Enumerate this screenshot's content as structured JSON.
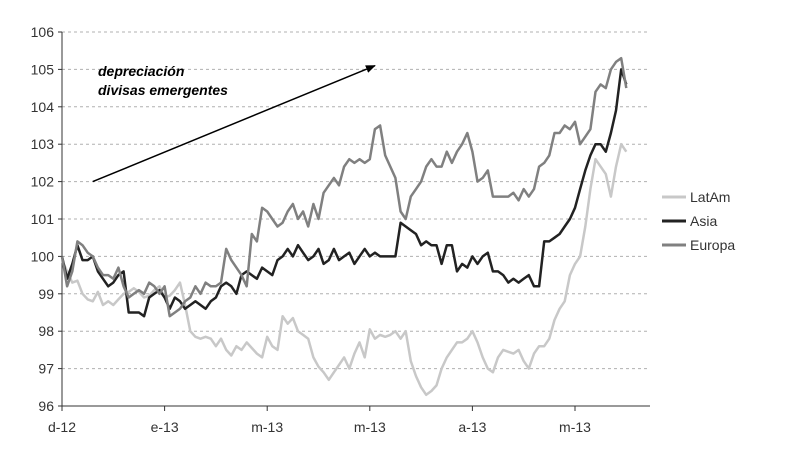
{
  "chart_data": {
    "type": "line",
    "title": "",
    "xlabel": "",
    "ylabel": "",
    "ylim": [
      96,
      106
    ],
    "yticks": [
      96,
      97,
      98,
      99,
      100,
      101,
      102,
      103,
      104,
      105,
      106
    ],
    "xticks": [
      "d-12",
      "e-13",
      "m-13",
      "m-13",
      "a-13",
      "m-13"
    ],
    "grid": "horizontal-dashed",
    "legend_position": "right",
    "annotation": {
      "lines": [
        "depreciación",
        "divisas emergentes"
      ],
      "arrow": {
        "from": [
          0.3,
          102.0
        ],
        "to": [
          3.05,
          105.1
        ]
      }
    },
    "series": [
      {
        "name": "LatAm",
        "color": "#c8c8c8",
        "x": [
          0,
          0.05,
          0.1,
          0.15,
          0.2,
          0.25,
          0.3,
          0.35,
          0.4,
          0.45,
          0.5,
          0.55,
          0.6,
          0.65,
          0.7,
          0.75,
          0.8,
          0.85,
          0.9,
          0.95,
          1,
          1.05,
          1.1,
          1.15,
          1.2,
          1.25,
          1.3,
          1.35,
          1.4,
          1.45,
          1.5,
          1.55,
          1.6,
          1.65,
          1.7,
          1.75,
          1.8,
          1.85,
          1.9,
          1.95,
          2,
          2.05,
          2.1,
          2.15,
          2.2,
          2.25,
          2.3,
          2.35,
          2.4,
          2.45,
          2.5,
          2.55,
          2.6,
          2.65,
          2.7,
          2.75,
          2.8,
          2.85,
          2.9,
          2.95,
          3,
          3.05,
          3.1,
          3.15,
          3.2,
          3.25,
          3.3,
          3.35,
          3.4,
          3.45,
          3.5,
          3.55,
          3.6,
          3.65,
          3.7,
          3.75,
          3.8,
          3.85,
          3.9,
          3.95,
          4,
          4.05,
          4.1,
          4.15,
          4.2,
          4.25,
          4.3,
          4.35,
          4.4,
          4.45,
          4.5,
          4.55,
          4.6,
          4.65,
          4.7,
          4.75,
          4.8,
          4.85,
          4.9,
          4.95,
          5,
          5.05,
          5.1,
          5.15,
          5.2,
          5.25,
          5.3,
          5.35,
          5.4,
          5.45,
          5.5
        ],
        "values": [
          99.9,
          99.6,
          99.3,
          99.35,
          99.0,
          98.85,
          98.8,
          99.05,
          98.7,
          98.8,
          98.7,
          98.85,
          99.0,
          99.05,
          99.15,
          99.05,
          98.9,
          98.95,
          99.1,
          99.2,
          98.9,
          98.95,
          99.1,
          99.3,
          98.7,
          98.0,
          97.85,
          97.8,
          97.85,
          97.8,
          97.6,
          97.8,
          97.5,
          97.35,
          97.6,
          97.5,
          97.7,
          97.55,
          97.4,
          97.3,
          97.85,
          97.6,
          97.5,
          98.4,
          98.2,
          98.35,
          98.0,
          97.9,
          97.8,
          97.3,
          97.05,
          96.9,
          96.7,
          96.9,
          97.1,
          97.3,
          97.0,
          97.4,
          97.7,
          97.3,
          98.05,
          97.8,
          97.9,
          97.85,
          97.9,
          98.0,
          97.8,
          98.0,
          97.2,
          96.8,
          96.5,
          96.3,
          96.4,
          96.55,
          97.0,
          97.3,
          97.5,
          97.7,
          97.7,
          97.8,
          98.0,
          97.7,
          97.3,
          97.0,
          96.9,
          97.3,
          97.5,
          97.45,
          97.4,
          97.5,
          97.2,
          97.0,
          97.4,
          97.6,
          97.6,
          97.8,
          98.3,
          98.6,
          98.8,
          99.5,
          99.8,
          100.0,
          100.8,
          101.8,
          102.6,
          102.4,
          102.2,
          101.6,
          102.4,
          103.0,
          102.8
        ]
      },
      {
        "name": "Asia",
        "color": "#222222",
        "x": [
          0,
          0.05,
          0.1,
          0.15,
          0.2,
          0.25,
          0.3,
          0.35,
          0.4,
          0.45,
          0.5,
          0.55,
          0.6,
          0.65,
          0.7,
          0.75,
          0.8,
          0.85,
          0.9,
          0.95,
          1,
          1.05,
          1.1,
          1.15,
          1.2,
          1.25,
          1.3,
          1.35,
          1.4,
          1.45,
          1.5,
          1.55,
          1.6,
          1.65,
          1.7,
          1.75,
          1.8,
          1.85,
          1.9,
          1.95,
          2,
          2.05,
          2.1,
          2.15,
          2.2,
          2.25,
          2.3,
          2.35,
          2.4,
          2.45,
          2.5,
          2.55,
          2.6,
          2.65,
          2.7,
          2.75,
          2.8,
          2.85,
          2.9,
          2.95,
          3,
          3.05,
          3.1,
          3.15,
          3.2,
          3.25,
          3.3,
          3.35,
          3.4,
          3.45,
          3.5,
          3.55,
          3.6,
          3.65,
          3.7,
          3.75,
          3.8,
          3.85,
          3.9,
          3.95,
          4,
          4.05,
          4.1,
          4.15,
          4.2,
          4.25,
          4.3,
          4.35,
          4.4,
          4.45,
          4.5,
          4.55,
          4.6,
          4.65,
          4.7,
          4.75,
          4.8,
          4.85,
          4.9,
          4.95,
          5,
          5.05,
          5.1,
          5.15,
          5.2,
          5.25,
          5.3,
          5.35,
          5.4,
          5.45,
          5.5
        ],
        "values": [
          100.0,
          99.4,
          99.8,
          100.3,
          99.9,
          99.9,
          100.0,
          99.6,
          99.4,
          99.2,
          99.3,
          99.5,
          99.6,
          98.5,
          98.5,
          98.5,
          98.4,
          98.9,
          99.0,
          99.1,
          98.9,
          98.6,
          98.9,
          98.8,
          98.6,
          98.7,
          98.8,
          98.7,
          98.6,
          98.8,
          98.9,
          99.2,
          99.3,
          99.2,
          99.0,
          99.5,
          99.6,
          99.5,
          99.4,
          99.7,
          99.6,
          99.5,
          99.9,
          100.0,
          100.2,
          100.0,
          100.3,
          100.1,
          99.9,
          100.0,
          100.2,
          99.8,
          99.9,
          100.2,
          99.9,
          100.0,
          100.1,
          99.8,
          100.0,
          100.2,
          100.0,
          100.1,
          100.0,
          100.0,
          100.0,
          100.0,
          100.9,
          100.8,
          100.7,
          100.6,
          100.3,
          100.4,
          100.3,
          100.3,
          99.8,
          100.3,
          100.3,
          99.6,
          99.8,
          99.7,
          100.0,
          99.8,
          100.0,
          100.1,
          99.6,
          99.6,
          99.5,
          99.3,
          99.4,
          99.3,
          99.4,
          99.5,
          99.2,
          99.2,
          100.4,
          100.4,
          100.5,
          100.6,
          100.8,
          101.0,
          101.3,
          101.8,
          102.3,
          102.7,
          103.0,
          103.0,
          102.8,
          103.3,
          103.9,
          105.0,
          104.6
        ]
      },
      {
        "name": "Europa",
        "color": "#808080",
        "x": [
          0,
          0.05,
          0.1,
          0.15,
          0.2,
          0.25,
          0.3,
          0.35,
          0.4,
          0.45,
          0.5,
          0.55,
          0.6,
          0.65,
          0.7,
          0.75,
          0.8,
          0.85,
          0.9,
          0.95,
          1,
          1.05,
          1.1,
          1.15,
          1.2,
          1.25,
          1.3,
          1.35,
          1.4,
          1.45,
          1.5,
          1.55,
          1.6,
          1.65,
          1.7,
          1.75,
          1.8,
          1.85,
          1.9,
          1.95,
          2,
          2.05,
          2.1,
          2.15,
          2.2,
          2.25,
          2.3,
          2.35,
          2.4,
          2.45,
          2.5,
          2.55,
          2.6,
          2.65,
          2.7,
          2.75,
          2.8,
          2.85,
          2.9,
          2.95,
          3,
          3.05,
          3.1,
          3.15,
          3.2,
          3.25,
          3.3,
          3.35,
          3.4,
          3.45,
          3.5,
          3.55,
          3.6,
          3.65,
          3.7,
          3.75,
          3.8,
          3.85,
          3.9,
          3.95,
          4,
          4.05,
          4.1,
          4.15,
          4.2,
          4.25,
          4.3,
          4.35,
          4.4,
          4.45,
          4.5,
          4.55,
          4.6,
          4.65,
          4.7,
          4.75,
          4.8,
          4.85,
          4.9,
          4.95,
          5,
          5.05,
          5.1,
          5.15,
          5.2,
          5.25,
          5.3,
          5.35,
          5.4,
          5.45,
          5.5
        ],
        "values": [
          100.0,
          99.2,
          99.6,
          100.4,
          100.3,
          100.1,
          100.0,
          99.7,
          99.5,
          99.5,
          99.4,
          99.7,
          99.2,
          98.9,
          99.0,
          99.1,
          99.0,
          99.3,
          99.2,
          99.0,
          99.2,
          98.4,
          98.5,
          98.6,
          98.8,
          98.9,
          99.2,
          99.0,
          99.3,
          99.2,
          99.2,
          99.3,
          100.2,
          99.9,
          99.7,
          99.5,
          99.2,
          100.6,
          100.4,
          101.3,
          101.2,
          101.0,
          100.8,
          100.9,
          101.2,
          101.4,
          101.0,
          101.2,
          100.8,
          101.4,
          101.0,
          101.7,
          101.9,
          102.1,
          101.9,
          102.4,
          102.6,
          102.5,
          102.6,
          102.5,
          102.6,
          103.4,
          103.5,
          102.7,
          102.4,
          102.1,
          101.2,
          101.0,
          101.6,
          101.8,
          102.0,
          102.4,
          102.6,
          102.4,
          102.4,
          102.8,
          102.5,
          102.8,
          103.0,
          103.3,
          102.8,
          102.0,
          102.1,
          102.3,
          101.6,
          101.6,
          101.6,
          101.6,
          101.7,
          101.5,
          101.8,
          101.6,
          101.8,
          102.4,
          102.5,
          102.7,
          103.3,
          103.3,
          103.5,
          103.4,
          103.6,
          103.0,
          103.2,
          103.4,
          104.4,
          104.6,
          104.5,
          105.0,
          105.2,
          105.3,
          104.5
        ]
      }
    ]
  }
}
